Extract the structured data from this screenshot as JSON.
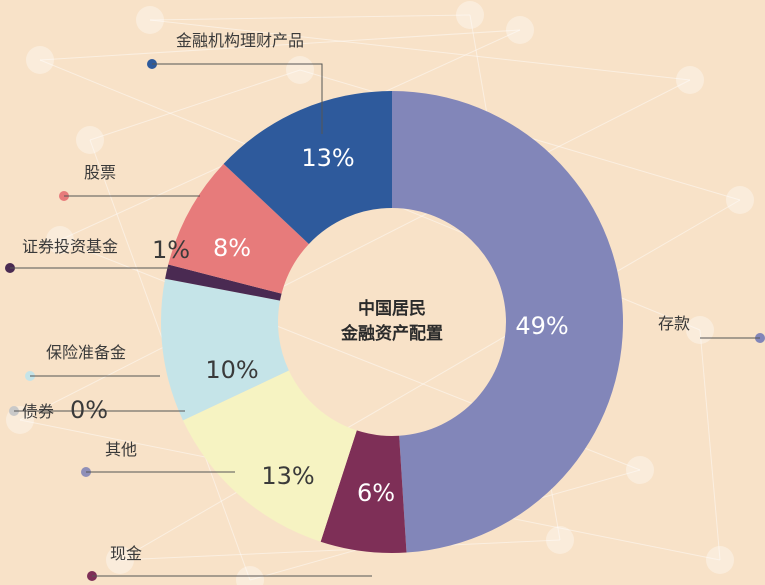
{
  "chart_data": {
    "type": "pie",
    "center_label": [
      "中国居民",
      "金融资产配置"
    ],
    "slices": [
      {
        "label": "存款",
        "value": 49,
        "value_label": "49%",
        "color": "#8286b9"
      },
      {
        "label": "现金",
        "value": 6,
        "value_label": "6%",
        "color": "#7e2f57"
      },
      {
        "label": "其他",
        "value": 13,
        "value_label": "13%",
        "color": "#f6f3c2"
      },
      {
        "label": "债券",
        "value": 0,
        "value_label": "0%",
        "color": "#c9c9c9"
      },
      {
        "label": "保险准备金",
        "value": 10,
        "value_label": "10%",
        "color": "#c5e4e8"
      },
      {
        "label": "证券投资基金",
        "value": 1,
        "value_label": "1%",
        "color": "#4a2a52"
      },
      {
        "label": "股票",
        "value": 8,
        "value_label": "8%",
        "color": "#e77b7b"
      },
      {
        "label": "金融机构理财产品",
        "value": 13,
        "value_label": "13%",
        "color": "#2e5a9c"
      }
    ]
  }
}
